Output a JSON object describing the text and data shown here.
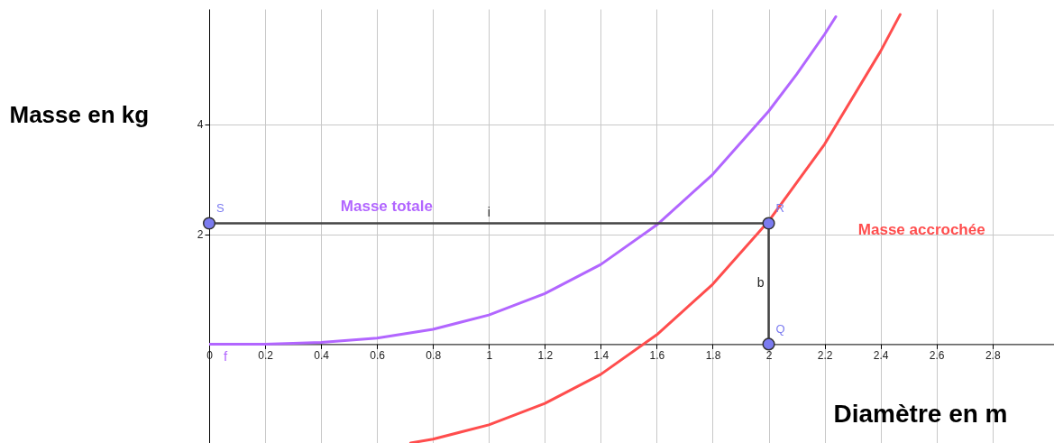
{
  "chart_data": {
    "type": "line",
    "xlabel": "Diamètre en m",
    "ylabel": "Masse en kg",
    "xlim": [
      0,
      3.02
    ],
    "ylim": [
      -1.8,
      6.1
    ],
    "xticks": [
      0,
      0.2,
      0.4,
      0.6,
      0.8,
      1,
      1.2,
      1.4,
      1.6,
      1.8,
      2,
      2.2,
      2.4,
      2.6,
      2.8
    ],
    "yticks": [
      2,
      4
    ],
    "grid": true,
    "series": [
      {
        "name": "Masse totale",
        "color": "#b266ff",
        "x": [
          0,
          0.2,
          0.4,
          0.6,
          0.8,
          1,
          1.2,
          1.4,
          1.6,
          1.8,
          2,
          2.1,
          2.2,
          2.24
        ],
        "values": [
          0,
          0,
          0.03,
          0.11,
          0.27,
          0.53,
          0.92,
          1.45,
          2.17,
          3.09,
          4.24,
          4.91,
          5.64,
          5.96
        ]
      },
      {
        "name": "Masse accrochée",
        "color": "#ff4d4d",
        "x": [
          0.72,
          0.8,
          1,
          1.2,
          1.4,
          1.6,
          1.8,
          2,
          2.2,
          2.4,
          2.47
        ],
        "values": [
          -1.8,
          -1.73,
          -1.47,
          -1.08,
          -0.55,
          0.17,
          1.09,
          2.24,
          3.64,
          5.33,
          6.0
        ]
      },
      {
        "name": "b",
        "color": "#444444",
        "x": [
          2,
          2
        ],
        "values": [
          0,
          2.2
        ]
      },
      {
        "name": "i",
        "color": "#444444",
        "x": [
          2,
          0
        ],
        "values": [
          2.2,
          2.2
        ]
      },
      {
        "type": "scatter",
        "color": "#7b7bf0",
        "x": [
          0,
          2,
          2
        ],
        "values": [
          2.2,
          2.2,
          0
        ],
        "value_labels": [
          "S",
          "R",
          "Q"
        ]
      }
    ],
    "annotations": [
      "f"
    ]
  }
}
